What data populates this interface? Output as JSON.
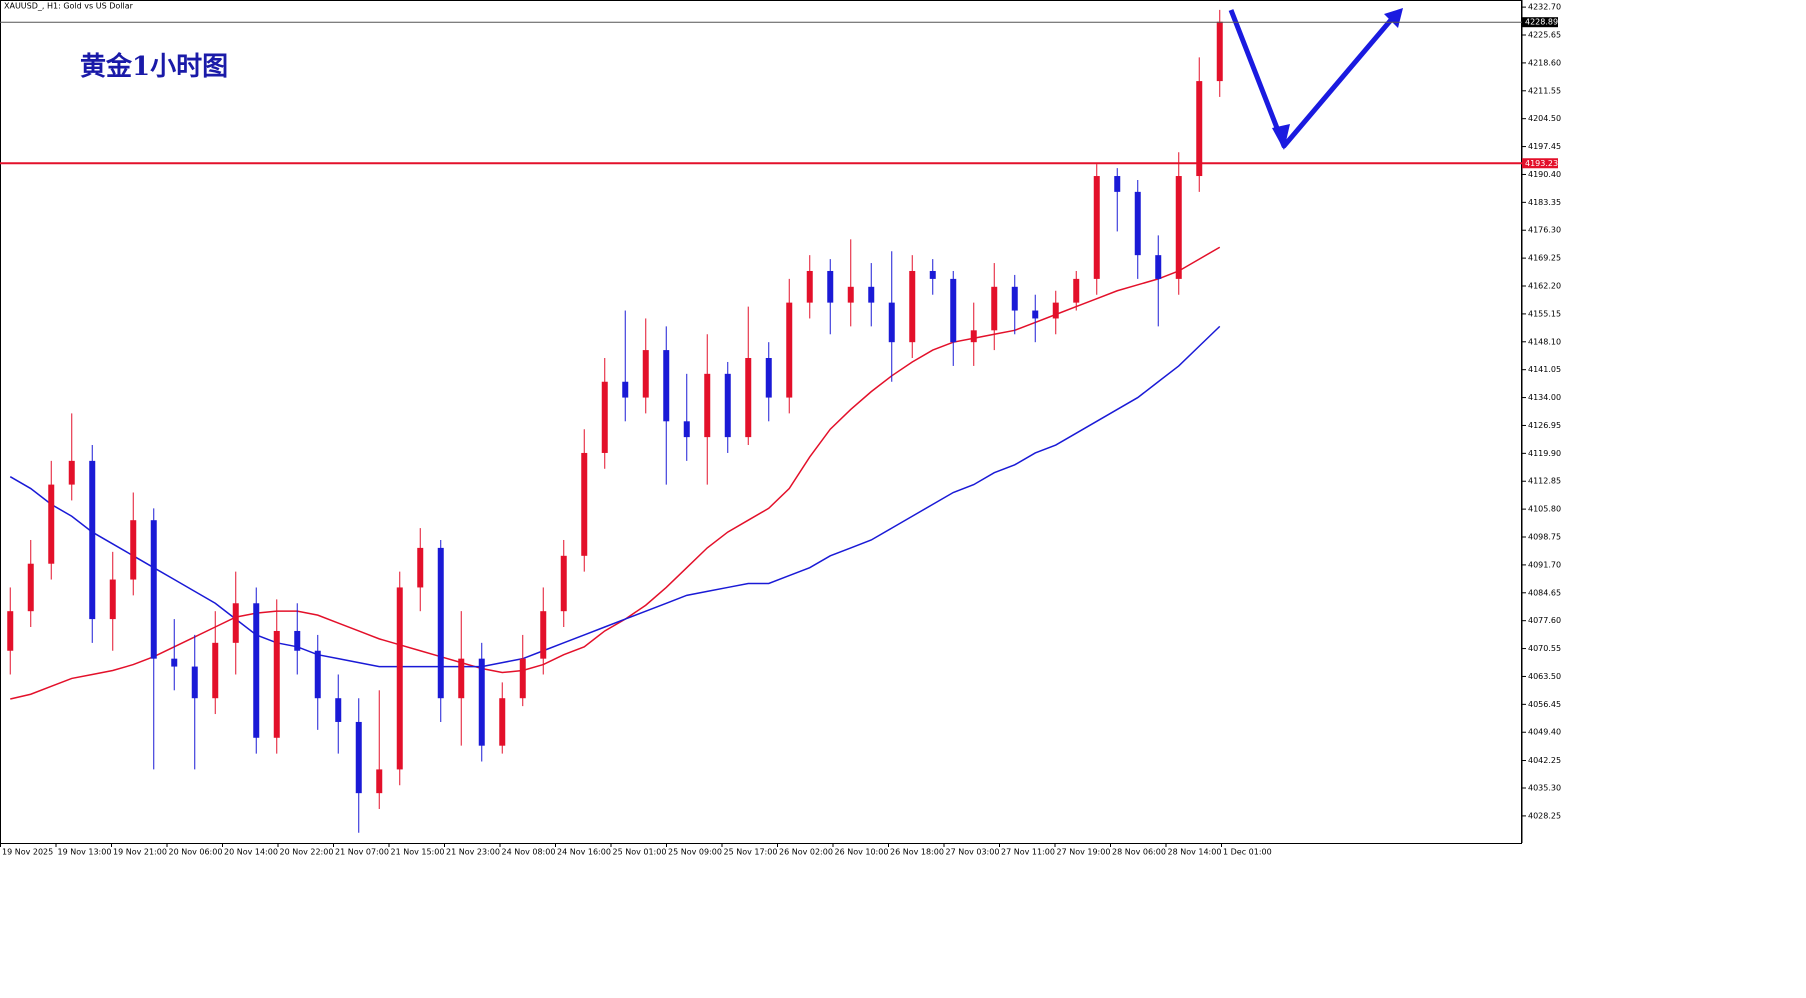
{
  "chart_data": {
    "type": "candlestick",
    "header": "XAUUSD_, H1:  Gold vs US Dollar",
    "title": "黄金1小时图",
    "up_color": "#e3102a",
    "down_color": "#1a1ad6",
    "x_labels": [
      "19 Nov 2025",
      "19 Nov 13:00",
      "19 Nov 21:00",
      "20 Nov 06:00",
      "20 Nov 14:00",
      "20 Nov 22:00",
      "21 Nov 07:00",
      "21 Nov 15:00",
      "21 Nov 23:00",
      "24 Nov 08:00",
      "24 Nov 16:00",
      "25 Nov 01:00",
      "25 Nov 09:00",
      "25 Nov 17:00",
      "26 Nov 02:00",
      "26 Nov 10:00",
      "26 Nov 18:00",
      "27 Nov 03:00",
      "27 Nov 11:00",
      "27 Nov 19:00",
      "28 Nov 06:00",
      "28 Nov 14:00",
      "1 Dec 01:00"
    ],
    "open": [
      4070,
      4080,
      4092,
      4112,
      4118,
      4078,
      4088,
      4103,
      4068,
      4066,
      4058,
      4072,
      4082,
      4048,
      4075,
      4070,
      4058,
      4052,
      4034,
      4040,
      4086,
      4096,
      4058,
      4068,
      4046,
      4058,
      4068,
      4080,
      4094,
      4120,
      4138,
      4134,
      4146,
      4128,
      4124,
      4140,
      4124,
      4144,
      4134,
      4158,
      4166,
      4158,
      4162,
      4158,
      4148,
      4166,
      4164,
      4148,
      4151,
      4162,
      4156,
      4154,
      4158,
      4164,
      4190,
      4186,
      4170,
      4164,
      4190,
      4214
    ],
    "high": [
      4086,
      4098,
      4118,
      4130,
      4122,
      4095,
      4110,
      4106,
      4078,
      4074,
      4080,
      4090,
      4086,
      4083,
      4082,
      4074,
      4064,
      4058,
      4060,
      4090,
      4101,
      4098,
      4080,
      4072,
      4062,
      4074,
      4086,
      4098,
      4126,
      4144,
      4156,
      4154,
      4152,
      4140,
      4150,
      4143,
      4157,
      4148,
      4164,
      4170,
      4169,
      4174,
      4168,
      4171,
      4170,
      4169,
      4166,
      4158,
      4168,
      4165,
      4160,
      4161,
      4166,
      4193,
      4192,
      4189,
      4175,
      4196,
      4220,
      4232
    ],
    "low": [
      4064,
      4076,
      4088,
      4108,
      4072,
      4070,
      4084,
      4040,
      4060,
      4040,
      4054,
      4064,
      4044,
      4044,
      4064,
      4050,
      4044,
      4024,
      4030,
      4036,
      4080,
      4052,
      4046,
      4042,
      4044,
      4056,
      4064,
      4076,
      4090,
      4116,
      4128,
      4130,
      4112,
      4118,
      4112,
      4120,
      4122,
      4128,
      4130,
      4154,
      4150,
      4152,
      4152,
      4138,
      4144,
      4160,
      4142,
      4142,
      4146,
      4150,
      4148,
      4150,
      4156,
      4160,
      4176,
      4164,
      4152,
      4160,
      4186,
      4210
    ],
    "close": [
      4080,
      4092,
      4112,
      4118,
      4078,
      4088,
      4103,
      4068,
      4066,
      4058,
      4072,
      4082,
      4048,
      4075,
      4070,
      4058,
      4052,
      4034,
      4040,
      4086,
      4096,
      4058,
      4068,
      4046,
      4058,
      4068,
      4080,
      4094,
      4120,
      4138,
      4134,
      4146,
      4128,
      4124,
      4140,
      4124,
      4144,
      4134,
      4158,
      4166,
      4158,
      4162,
      4158,
      4148,
      4166,
      4164,
      4148,
      4151,
      4162,
      4156,
      4154,
      4158,
      4164,
      4190,
      4186,
      4170,
      4164,
      4190,
      4214,
      4229
    ],
    "moving_averages": [
      {
        "color": "#e3102a",
        "values": [
          4057.8,
          4059,
          4061,
          4063,
          4064,
          4065,
          4066.5,
          4068.5,
          4071,
          4073.5,
          4076,
          4078.5,
          4079.5,
          4080,
          4080,
          4079,
          4077,
          4075,
          4073,
          4071.5,
          4070,
          4068.5,
          4067,
          4065.5,
          4064.5,
          4065,
          4066.5,
          4069,
          4071,
          4075,
          4078,
          4081.5,
          4086,
          4091,
          4096,
          4100,
          4103,
          4106,
          4111,
          4119,
          4126,
          4131,
          4135.5,
          4139.5,
          4143,
          4146,
          4148,
          4149,
          4150,
          4151,
          4153,
          4155,
          4157,
          4159,
          4161,
          4162.5,
          4164,
          4166,
          4169,
          4172
        ]
      },
      {
        "color": "#1a1ad6",
        "values": [
          4114,
          4111,
          4107,
          4104,
          4100,
          4097,
          4094,
          4091,
          4088,
          4085,
          4082,
          4078,
          4074,
          4072,
          4071,
          4069,
          4068,
          4067,
          4066,
          4066,
          4066,
          4066,
          4066,
          4066,
          4067,
          4068,
          4070,
          4072,
          4074,
          4076,
          4078,
          4080,
          4082,
          4084,
          4085,
          4086,
          4087,
          4087,
          4089,
          4091,
          4094,
          4096,
          4098,
          4101,
          4104,
          4107,
          4110,
          4112,
          4115,
          4117,
          4120,
          4122,
          4125,
          4128,
          4131,
          4134,
          4138,
          4142,
          4147,
          4152
        ]
      }
    ],
    "hlines": [
      {
        "value": 4228.89,
        "color": "#555555"
      },
      {
        "value": 4193.23,
        "color": "#e3102a"
      }
    ],
    "ylim": [
      4021.4,
      4234.5
    ],
    "yticks": [
      4028.25,
      {
        "value": 4035.3,
        "label": "4035.30"
      },
      4042.25,
      {
        "value": 4049.4,
        "label": "4049.40"
      },
      4056.45,
      {
        "value": 4063.5,
        "label": "4063.50"
      },
      4070.55,
      {
        "value": 4077.6,
        "label": "4077.60"
      },
      4084.65,
      {
        "value": 4091.7,
        "label": "4091.70"
      },
      4098.75,
      {
        "value": 4105.8,
        "label": "4105.80"
      },
      4112.85,
      {
        "value": 4119.9,
        "label": "4119.90"
      },
      4126.95,
      {
        "value": 4134,
        "label": "4134.00"
      },
      4141.05,
      {
        "value": 4148.1,
        "label": "4148.10"
      },
      4155.15,
      {
        "value": 4162.2,
        "label": "4162.20"
      },
      4169.25,
      {
        "value": 4176.3,
        "label": "4176.30"
      },
      4183.35,
      {
        "value": 4190.4,
        "label": "4190.40"
      },
      4197.45,
      {
        "value": 4204.5,
        "label": "4204.50"
      },
      4211.55,
      {
        "value": 4218.6,
        "label": "4218.60"
      },
      4225.65,
      {
        "value": 4232.7,
        "label": "4232.70"
      }
    ]
  }
}
